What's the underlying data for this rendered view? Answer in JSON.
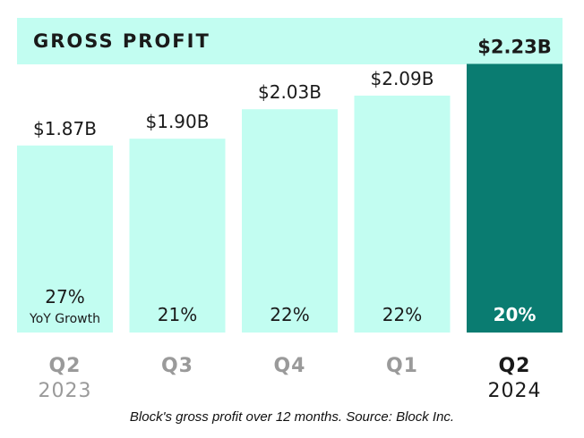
{
  "header": {
    "title": "GROSS PROFIT"
  },
  "caption": "Block's gross profit over 12 months. Source: Block Inc.",
  "colors": {
    "bar": "#c2fdf1",
    "highlight": "#0a7c71",
    "title_band": "#c2fdf1",
    "text": "#1a1a1a",
    "muted": "#9a9a9a"
  },
  "chart_data": {
    "type": "bar",
    "title": "GROSS PROFIT",
    "categories": [
      "Q2 2023",
      "Q3",
      "Q4",
      "Q1",
      "Q2 2024"
    ],
    "category_lines": [
      [
        "Q2",
        "2023"
      ],
      [
        "Q3"
      ],
      [
        "Q4"
      ],
      [
        "Q1"
      ],
      [
        "Q2",
        "2024"
      ]
    ],
    "values": [
      1.87,
      1.9,
      2.03,
      2.09,
      2.23
    ],
    "value_labels": [
      "$1.87B",
      "$1.90B",
      "$2.03B",
      "$2.09B",
      "$2.23B"
    ],
    "yoy_growth": [
      "27%",
      "21%",
      "22%",
      "22%",
      "20%"
    ],
    "yoy_label": "YoY Growth",
    "highlight_index": 4,
    "unit": "$B",
    "xlabel": "",
    "ylabel": "",
    "grid": false,
    "legend": "none"
  }
}
